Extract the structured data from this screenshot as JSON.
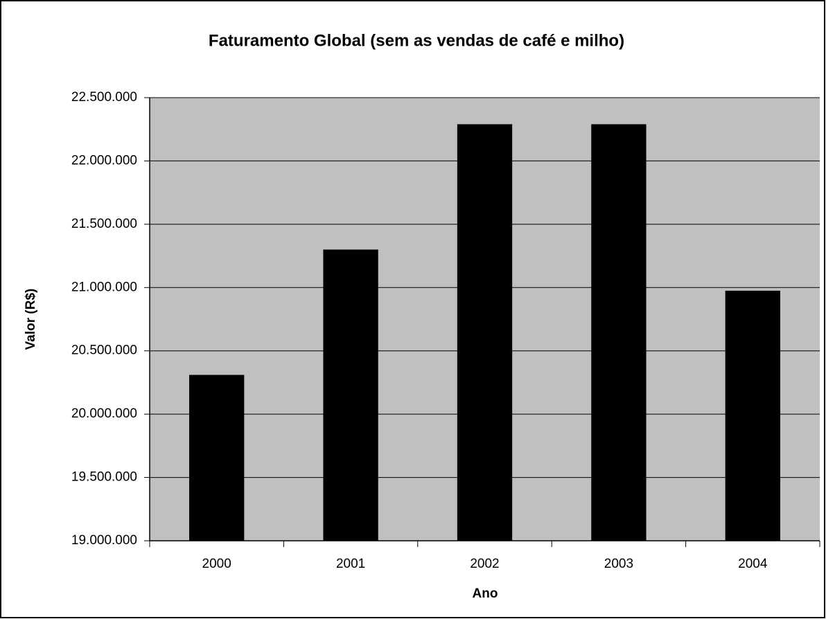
{
  "chart_data": {
    "type": "bar",
    "title": "Faturamento Global (sem as vendas de café e milho)",
    "x_label": "Ano",
    "y_label": "Valor (R$)",
    "categories": [
      "2000",
      "2001",
      "2002",
      "2003",
      "2004"
    ],
    "values": [
      20310000,
      21300000,
      22290000,
      22290000,
      20975000
    ],
    "color": "#000000",
    "ylim": [
      19000000,
      22500000
    ],
    "yticks": [
      {
        "value": 19000000,
        "label": "19.000.000"
      },
      {
        "value": 19500000,
        "label": "19.500.000"
      },
      {
        "value": 20000000,
        "label": "20.000.000"
      },
      {
        "value": 20500000,
        "label": "20.500.000"
      },
      {
        "value": 21000000,
        "label": "21.000.000"
      },
      {
        "value": 21500000,
        "label": "21.500.000"
      },
      {
        "value": 22000000,
        "label": "22.000.000"
      },
      {
        "value": 22500000,
        "label": "22.500.000"
      }
    ],
    "grid": true
  }
}
